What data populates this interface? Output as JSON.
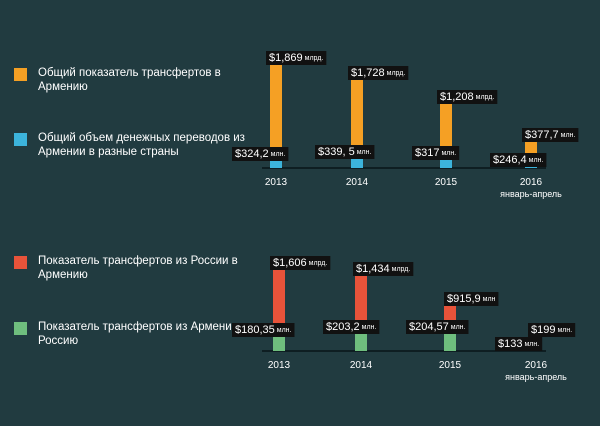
{
  "colors": {
    "background": "#213b40",
    "orange": "#f5a024",
    "blue": "#3cb4dc",
    "red": "#e8533a",
    "green": "#6fbe7e",
    "label_bg": "#111111",
    "baseline": "#0e1e22"
  },
  "legend_top": [
    {
      "text": "Общий показатель трансфертов в Армению",
      "color": "#f5a024"
    },
    {
      "text": "Общий объем денежных переводов из Армении в разные страны",
      "color": "#3cb4dc"
    }
  ],
  "legend_bottom": [
    {
      "text": "Показатель трансфертов из России в Армению",
      "color": "#e8533a"
    },
    {
      "text": "Показатель трансфертов из Армении в Россию",
      "color": "#6fbe7e"
    }
  ],
  "chart_data": [
    {
      "type": "bar",
      "categories": [
        "2013",
        "2014",
        "2015",
        "2016"
      ],
      "category_sublabels": [
        "",
        "",
        "",
        "январь-апрель"
      ],
      "series": [
        {
          "name": "Общий показатель трансфертов в Армению",
          "color": "#f5a024",
          "values": [
            1869,
            1728,
            1208,
            377.7
          ],
          "labels": [
            "$1,869",
            "$1,728",
            "$1,208",
            "$377,7"
          ],
          "units": [
            "млрд.",
            "млрд.",
            "млрд.",
            "млн."
          ]
        },
        {
          "name": "Общий объем денежных переводов из Армении в разные страны",
          "color": "#3cb4dc",
          "values": [
            324.2,
            339.5,
            317,
            246.4
          ],
          "labels": [
            "$324,2",
            "$339, 5",
            "$317",
            "$246,4"
          ],
          "units": [
            "млн.",
            "млн.",
            "млн.",
            "млн."
          ]
        }
      ]
    },
    {
      "type": "bar",
      "categories": [
        "2013",
        "2014",
        "2015",
        "2016"
      ],
      "category_sublabels": [
        "",
        "",
        "",
        "январь-апрель"
      ],
      "series": [
        {
          "name": "Показатель трансфертов из России в Армению",
          "color": "#e8533a",
          "values": [
            1606,
            1434,
            915.9,
            199
          ],
          "labels": [
            "$1,606",
            "$1,434",
            "$915,9",
            "$199"
          ],
          "units": [
            "млрд.",
            "млрд.",
            "млн",
            "млн."
          ]
        },
        {
          "name": "Показатель трансфертов из Армении в Россию",
          "color": "#6fbe7e",
          "values": [
            180.35,
            203.2,
            204.57,
            133
          ],
          "labels": [
            "$180,35",
            "$203,2",
            "$204,57",
            "$133"
          ],
          "units": [
            "млн.",
            "млн.",
            "млн.",
            "млн."
          ]
        }
      ]
    }
  ]
}
